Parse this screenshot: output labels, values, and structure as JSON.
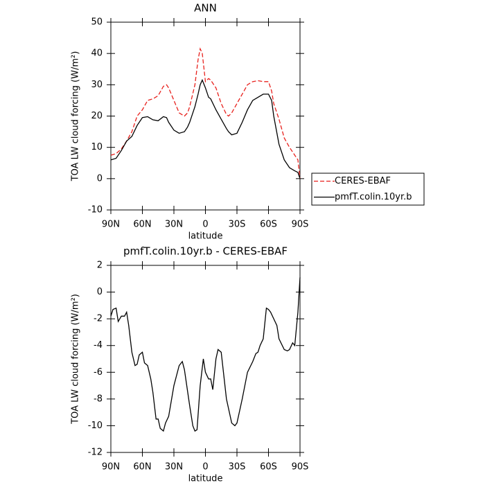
{
  "chart_data": [
    {
      "type": "line",
      "title": "ANN",
      "xlabel": "latitude",
      "ylabel": "TOA LW cloud forcing (W/m²)",
      "x": [
        90,
        85,
        80,
        75,
        70,
        65,
        60,
        55,
        50,
        45,
        40,
        37,
        35,
        30,
        25,
        20,
        17,
        15,
        10,
        7,
        5,
        3,
        0,
        -3,
        -5,
        -10,
        -15,
        -20,
        -22,
        -25,
        -30,
        -35,
        -40,
        -45,
        -50,
        -55,
        -60,
        -63,
        -65,
        -70,
        -75,
        -80,
        -85,
        -88,
        -90
      ],
      "series": [
        {
          "name": "CERES-EBAF",
          "color": "#e8201c",
          "line_style": "dashed",
          "values": [
            7.5,
            8,
            9.5,
            12,
            15,
            20,
            22,
            25,
            25.5,
            26.5,
            29.5,
            30,
            29,
            25,
            21,
            20,
            21,
            23,
            30,
            38,
            41.5,
            40,
            31,
            32,
            31.5,
            29,
            24,
            20.5,
            20,
            21,
            24,
            27,
            30,
            31,
            31.3,
            31,
            31,
            28,
            24,
            19,
            13,
            10,
            7.5,
            6,
            0
          ]
        },
        {
          "name": "pmfT.colin.10yr.b",
          "color": "#000000",
          "line_style": "solid",
          "values": [
            6,
            6.5,
            9,
            12,
            13.5,
            17,
            19.5,
            19.8,
            18.8,
            18.5,
            19.8,
            19.5,
            18,
            15.5,
            14.5,
            15,
            16.5,
            18,
            23,
            27,
            30,
            31.5,
            29,
            26,
            25.5,
            22,
            19,
            16,
            15,
            14,
            14.5,
            18,
            22,
            25,
            26,
            27,
            27,
            25,
            20,
            11,
            6,
            3.5,
            2.5,
            2,
            0
          ]
        }
      ],
      "xlim": [
        90,
        -90
      ],
      "xticks": [
        {
          "value": 90,
          "label": "90N"
        },
        {
          "value": 60,
          "label": "60N"
        },
        {
          "value": 30,
          "label": "30N"
        },
        0,
        {
          "value": -30,
          "label": "30S"
        },
        {
          "value": -60,
          "label": "60S"
        },
        {
          "value": -90,
          "label": "90S"
        }
      ],
      "ylim": [
        -10,
        50
      ],
      "yticks": [
        -10,
        0,
        10,
        20,
        30,
        40,
        50
      ],
      "legend": "right"
    },
    {
      "type": "line",
      "title": "pmfT.colin.10yr.b - CERES-EBAF",
      "xlabel": "latitude",
      "ylabel": "TOA LW cloud forcing (W/m²)",
      "x": [
        90,
        88,
        85,
        83,
        80,
        77,
        75,
        73,
        70,
        67,
        65,
        63,
        60,
        58,
        55,
        52,
        50,
        47,
        45,
        43,
        40,
        38,
        35,
        30,
        25,
        22,
        20,
        15,
        12,
        10,
        8,
        5,
        2,
        0,
        -3,
        -5,
        -7,
        -10,
        -12,
        -15,
        -20,
        -25,
        -28,
        -30,
        -35,
        -40,
        -45,
        -48,
        -50,
        -52,
        -55,
        -58,
        -60,
        -62,
        -65,
        -68,
        -70,
        -75,
        -78,
        -80,
        -83,
        -85,
        -88,
        -90
      ],
      "values": [
        -1.8,
        -1.3,
        -1.2,
        -2.2,
        -1.8,
        -1.8,
        -1.5,
        -2.5,
        -4.5,
        -5.5,
        -5.4,
        -4.7,
        -4.5,
        -5.3,
        -5.5,
        -6.5,
        -7.5,
        -9.5,
        -9.5,
        -10.2,
        -10.4,
        -9.8,
        -9.3,
        -7,
        -5.5,
        -5.2,
        -5.8,
        -8.5,
        -10,
        -10.4,
        -10.3,
        -7,
        -5,
        -6,
        -6.5,
        -6.5,
        -7.3,
        -5,
        -4.3,
        -4.5,
        -8,
        -9.8,
        -10,
        -9.8,
        -8,
        -6,
        -5.2,
        -4.6,
        -4.5,
        -4,
        -3.5,
        -1.2,
        -1.3,
        -1.5,
        -2,
        -2.5,
        -3.5,
        -4.3,
        -4.4,
        -4.3,
        -3.8,
        -4,
        -1.5,
        1.1
      ],
      "color": "#000000",
      "xlim": [
        90,
        -90
      ],
      "xticks": [
        {
          "value": 90,
          "label": "90N"
        },
        {
          "value": 60,
          "label": "60N"
        },
        {
          "value": 30,
          "label": "30N"
        },
        0,
        {
          "value": -30,
          "label": "30S"
        },
        {
          "value": -60,
          "label": "60S"
        },
        {
          "value": -90,
          "label": "90S"
        }
      ],
      "ylim": [
        -12,
        2
      ],
      "yticks": [
        -12,
        -10,
        -8,
        -6,
        -4,
        -2,
        0,
        2
      ]
    }
  ]
}
